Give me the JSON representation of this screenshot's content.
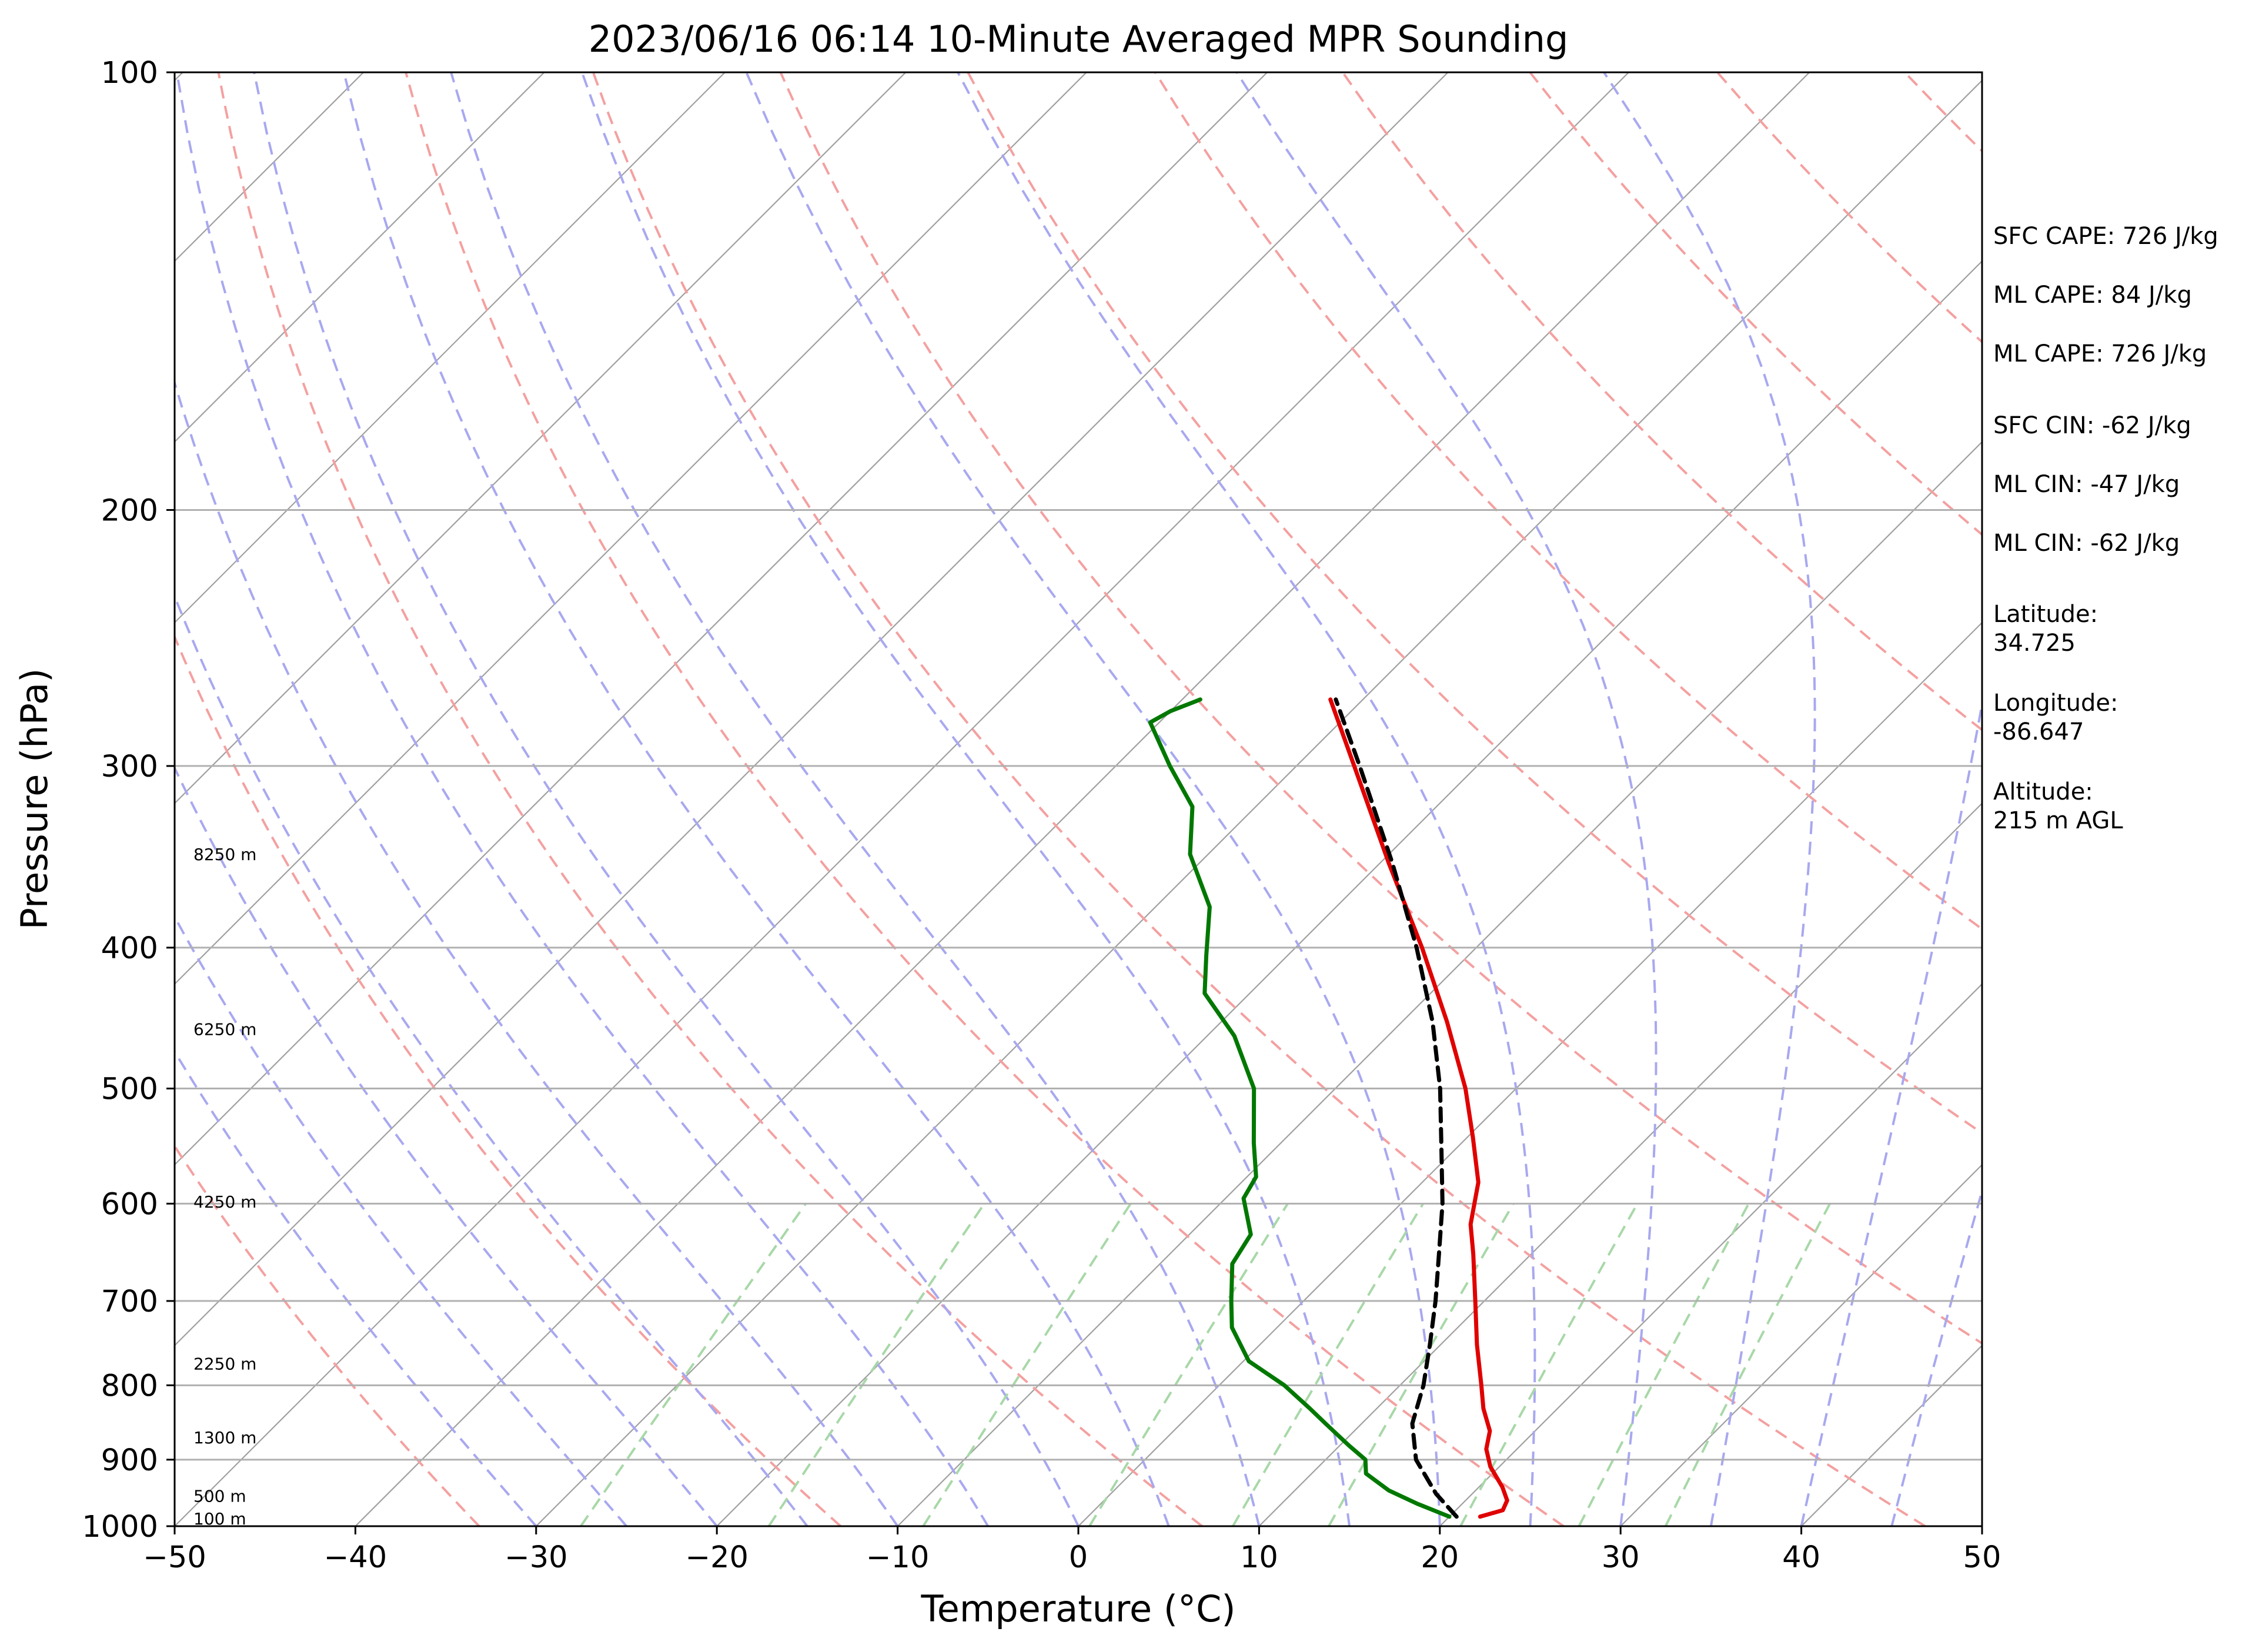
{
  "chart_data": {
    "type": "skew-t sounding",
    "title": "2023/06/16 06:14 10-Minute Averaged MPR Sounding",
    "xlabel": "Temperature (°C)",
    "ylabel": "Pressure (hPa)",
    "xlim": [
      -50,
      50
    ],
    "ylim": [
      1000,
      100
    ],
    "y_scale": "log",
    "skew": 45,
    "x_ticks": [
      -50,
      -40,
      -30,
      -20,
      -10,
      0,
      10,
      20,
      30,
      40,
      50
    ],
    "x_tick_labels": [
      "−50",
      "−40",
      "−30",
      "−20",
      "−10",
      "0",
      "10",
      "20",
      "30",
      "40",
      "50"
    ],
    "y_ticks": [
      1000,
      900,
      800,
      700,
      600,
      500,
      400,
      300,
      200,
      100
    ],
    "y_tick_labels": [
      "1000",
      "900",
      "800",
      "700",
      "600",
      "500",
      "400",
      "300",
      "200",
      "100"
    ],
    "grid": true,
    "colors": {
      "temperature": "#e00000",
      "dewpoint": "#007800",
      "parcel": "#000000",
      "dry_adiabats": "#f4a0a0",
      "moist_adiabats": "#a8a8f0",
      "mixing_ratio": "#a8d8a8",
      "isotherms": "#a0a0a0"
    },
    "height_labels": [
      {
        "p": 345,
        "text": "8250 m"
      },
      {
        "p": 455,
        "text": "6250 m"
      },
      {
        "p": 598,
        "text": "4250 m"
      },
      {
        "p": 773,
        "text": "2250 m"
      },
      {
        "p": 869,
        "text": "1300 m"
      },
      {
        "p": 953,
        "text": "500 m"
      },
      {
        "p": 988,
        "text": "100 m"
      }
    ],
    "series": [
      {
        "kind": "temperature",
        "points": [
          {
            "p": 985,
            "t": 21.7
          },
          {
            "p": 975,
            "t": 22.6
          },
          {
            "p": 960,
            "t": 22.3
          },
          {
            "p": 940,
            "t": 21.3
          },
          {
            "p": 910,
            "t": 19.5
          },
          {
            "p": 885,
            "t": 18.3
          },
          {
            "p": 860,
            "t": 17.5
          },
          {
            "p": 830,
            "t": 15.9
          },
          {
            "p": 800,
            "t": 14.5
          },
          {
            "p": 750,
            "t": 12.0
          },
          {
            "p": 700,
            "t": 9.5
          },
          {
            "p": 650,
            "t": 6.8
          },
          {
            "p": 620,
            "t": 5.0
          },
          {
            "p": 580,
            "t": 3.1
          },
          {
            "p": 540,
            "t": 0.3
          },
          {
            "p": 500,
            "t": -2.8
          },
          {
            "p": 450,
            "t": -7.5
          },
          {
            "p": 400,
            "t": -13.0
          },
          {
            "p": 350,
            "t": -19.5
          },
          {
            "p": 300,
            "t": -26.8
          },
          {
            "p": 270,
            "t": -31.8
          }
        ]
      },
      {
        "kind": "dewpoint",
        "points": [
          {
            "p": 985,
            "t": 20.0
          },
          {
            "p": 965,
            "t": 17.5
          },
          {
            "p": 945,
            "t": 15.2
          },
          {
            "p": 920,
            "t": 13.0
          },
          {
            "p": 900,
            "t": 12.2
          },
          {
            "p": 880,
            "t": 10.5
          },
          {
            "p": 850,
            "t": 8.0
          },
          {
            "p": 830,
            "t": 6.3
          },
          {
            "p": 800,
            "t": 3.6
          },
          {
            "p": 770,
            "t": 0.3
          },
          {
            "p": 730,
            "t": -2.5
          },
          {
            "p": 700,
            "t": -4.0
          },
          {
            "p": 660,
            "t": -6.0
          },
          {
            "p": 630,
            "t": -6.6
          },
          {
            "p": 595,
            "t": -9.0
          },
          {
            "p": 575,
            "t": -9.5
          },
          {
            "p": 545,
            "t": -11.5
          },
          {
            "p": 500,
            "t": -14.5
          },
          {
            "p": 460,
            "t": -18.5
          },
          {
            "p": 430,
            "t": -22.5
          },
          {
            "p": 405,
            "t": -24.5
          },
          {
            "p": 375,
            "t": -27.0
          },
          {
            "p": 345,
            "t": -31.0
          },
          {
            "p": 320,
            "t": -33.5
          },
          {
            "p": 300,
            "t": -37.0
          },
          {
            "p": 280,
            "t": -40.5
          },
          {
            "p": 275,
            "t": -40.0
          },
          {
            "p": 270,
            "t": -39.0
          }
        ]
      },
      {
        "kind": "parcel",
        "points": [
          {
            "p": 985,
            "t": 20.4
          },
          {
            "p": 950,
            "t": 18.0
          },
          {
            "p": 900,
            "t": 15.0
          },
          {
            "p": 850,
            "t": 12.8
          },
          {
            "p": 800,
            "t": 11.3
          },
          {
            "p": 750,
            "t": 9.4
          },
          {
            "p": 700,
            "t": 7.3
          },
          {
            "p": 650,
            "t": 4.9
          },
          {
            "p": 600,
            "t": 2.3
          },
          {
            "p": 550,
            "t": -0.8
          },
          {
            "p": 500,
            "t": -4.2
          },
          {
            "p": 450,
            "t": -8.3
          },
          {
            "p": 400,
            "t": -13.3
          },
          {
            "p": 350,
            "t": -19.3
          },
          {
            "p": 300,
            "t": -26.5
          },
          {
            "p": 270,
            "t": -31.5
          }
        ]
      }
    ]
  },
  "info": {
    "sfc_cape": "SFC CAPE: 726 J/kg",
    "ml_cape_1": "ML CAPE: 84 J/kg",
    "ml_cape_2": "ML CAPE: 726 J/kg",
    "sfc_cin": "SFC CIN: -62 J/kg",
    "ml_cin_1": "ML CIN: -47 J/kg",
    "ml_cin_2": "ML CIN: -62 J/kg",
    "latitude_label": "Latitude:",
    "latitude_value": "34.725",
    "longitude_label": "Longitude:",
    "longitude_value": "-86.647",
    "altitude_label": "Altitude:",
    "altitude_value": "215 m AGL"
  }
}
